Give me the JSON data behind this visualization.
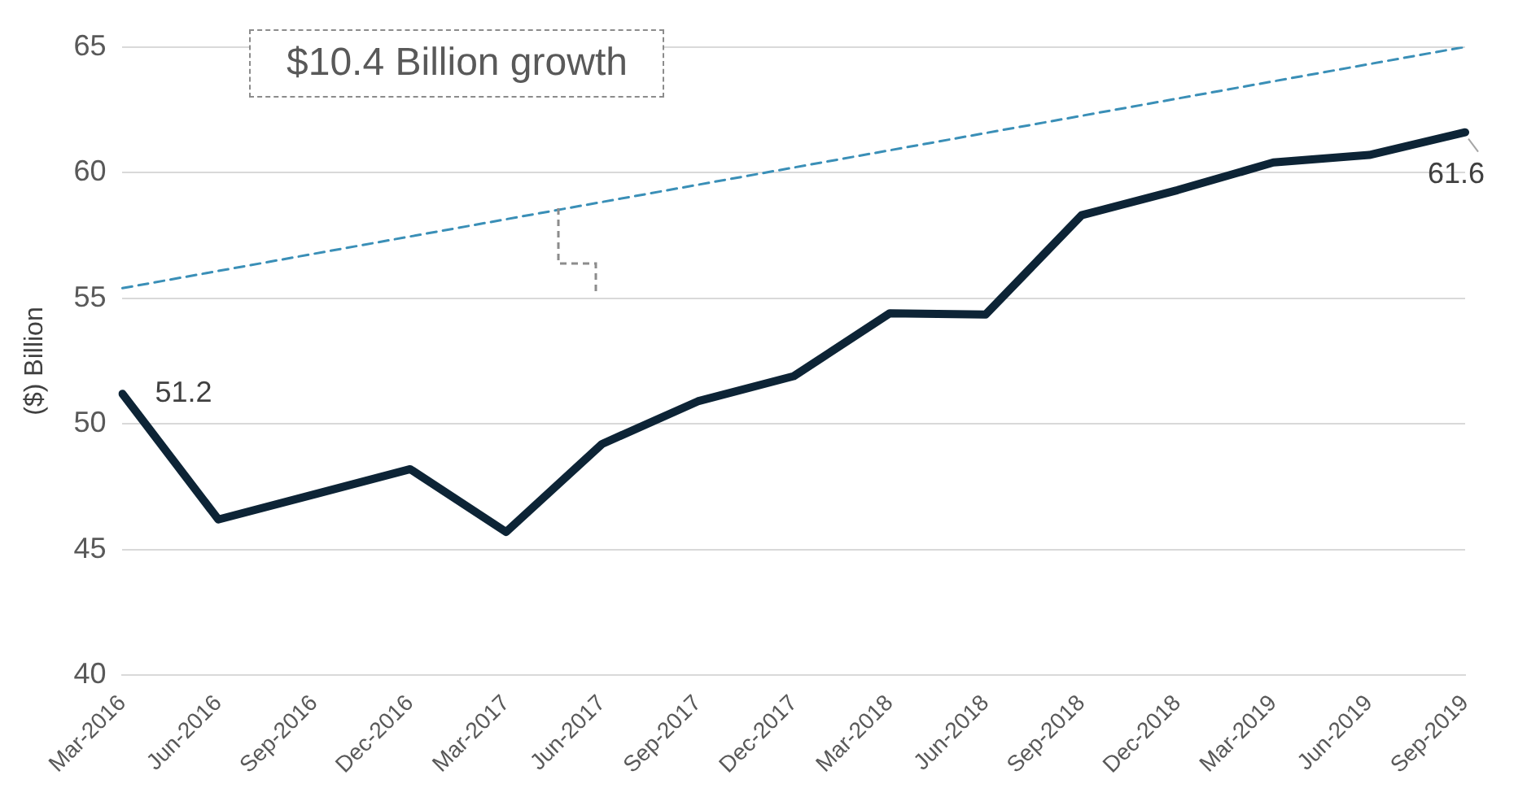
{
  "chart_data": {
    "type": "line",
    "ylabel": "($) Billion",
    "categories": [
      "Mar-2016",
      "Jun-2016",
      "Sep-2016",
      "Dec-2016",
      "Mar-2017",
      "Jun-2017",
      "Sep-2017",
      "Dec-2017",
      "Mar-2018",
      "Jun-2018",
      "Sep-2018",
      "Dec-2018",
      "Mar-2019",
      "Jun-2019",
      "Sep-2019"
    ],
    "series": [
      {
        "color": "#0d2436",
        "line_style": "solid",
        "values": [
          51.2,
          46.2,
          47.2,
          48.2,
          45.7,
          49.2,
          50.9,
          51.9,
          54.4,
          54.35,
          58.3,
          59.3,
          60.4,
          60.7,
          61.6
        ],
        "value_labels": [
          "51.2",
          null,
          null,
          null,
          null,
          null,
          null,
          null,
          null,
          null,
          null,
          null,
          null,
          null,
          "61.6"
        ]
      },
      {
        "color": "#3a8fb7",
        "line_style": "dashed",
        "values": [
          55.4,
          null,
          null,
          null,
          null,
          null,
          null,
          null,
          null,
          null,
          null,
          null,
          null,
          null,
          65
        ]
      }
    ],
    "ylim": [
      40,
      65
    ],
    "yticks": [
      40,
      45,
      50,
      55,
      60,
      65
    ],
    "grid": "y",
    "marker": "none",
    "annotations": [
      "$10.4 Billion growth"
    ]
  }
}
